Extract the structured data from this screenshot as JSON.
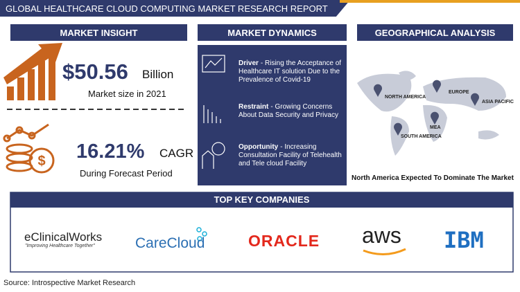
{
  "header": {
    "title": "GLOBAL HEALTHCARE CLOUD COMPUTING MARKET RESEARCH REPORT"
  },
  "market_insight": {
    "heading": "MARKET INSIGHT",
    "size_value": "$50.56",
    "size_unit": "Billion",
    "size_caption": "Market size in 2021",
    "cagr_value": "16.21%",
    "cagr_unit": "CAGR",
    "cagr_caption": "During Forecast Period"
  },
  "market_dynamics": {
    "heading": "MARKET DYNAMICS",
    "items": [
      {
        "label": "Driver",
        "text": "- Rising the Acceptance of Healthcare IT solution Due to the Prevalence of Covid-19"
      },
      {
        "label": "Restraint",
        "text": "- Growing Concerns About Data Security and Privacy"
      },
      {
        "label": "Opportunity",
        "text": "- Increasing Consultation Facility of Telehealth and Tele cloud Facility"
      }
    ]
  },
  "geographical_analysis": {
    "heading": "GEOGRAPHICAL ANALYSIS",
    "regions": [
      "NORTH AMERICA",
      "EUROPE",
      "ASIA PACIFIC",
      "MEA",
      "SOUTH AMERICA"
    ],
    "caption": "North America Expected To Dominate The Market"
  },
  "companies": {
    "heading": "TOP KEY COMPANIES",
    "logos": [
      "eClinicalWorks",
      "CareCloud",
      "ORACLE",
      "aws",
      "IBM"
    ],
    "tagline": "\"Improving Healthcare Together\""
  },
  "source": "Source: Introspective Market Research"
}
